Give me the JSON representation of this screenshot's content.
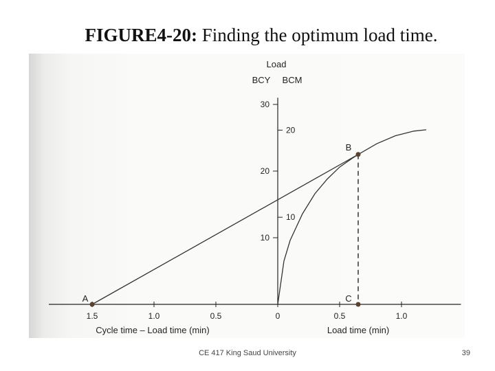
{
  "slide": {
    "title_bold": "FIGURE4-20:",
    "title_rest": " Finding the optimum load time.",
    "footer_text": "CE 417 King Saud University",
    "page_number": "39"
  },
  "chart_data": {
    "type": "line",
    "y_axis_title": "Load",
    "y_units": [
      "BCY",
      "BCM"
    ],
    "left_x_axis_label": "Cycle time – Load time (min)",
    "right_x_axis_label": "Load time (min)",
    "left_x_ticks": [
      "1.5",
      "1.0",
      "0.5",
      "0"
    ],
    "right_x_ticks": [
      "0.5",
      "1.0"
    ],
    "bcy_ticks": [
      10,
      20,
      30
    ],
    "bcm_ticks": [
      10,
      20
    ],
    "points": [
      {
        "label": "A",
        "x": -1.5,
        "y": 0
      },
      {
        "label": "B",
        "x": 0.65,
        "y": 22.5
      },
      {
        "label": "C",
        "x": 0.65,
        "y": 0
      }
    ],
    "series": [
      {
        "values": [
          [
            -1.5,
            0
          ],
          [
            0.65,
            22.5
          ]
        ]
      },
      {
        "values": [
          [
            0,
            0
          ],
          [
            0.05,
            6.5
          ],
          [
            0.1,
            9.6
          ],
          [
            0.2,
            13.6
          ],
          [
            0.3,
            16.6
          ],
          [
            0.4,
            18.8
          ],
          [
            0.5,
            20.6
          ],
          [
            0.6,
            21.9
          ],
          [
            0.65,
            22.5
          ],
          [
            0.8,
            24.1
          ],
          [
            0.95,
            25.3
          ],
          [
            1.1,
            26
          ],
          [
            1.2,
            26.2
          ]
        ]
      }
    ],
    "x_range": [
      -1.85,
      1.48
    ],
    "y_range": [
      0,
      31
    ]
  }
}
